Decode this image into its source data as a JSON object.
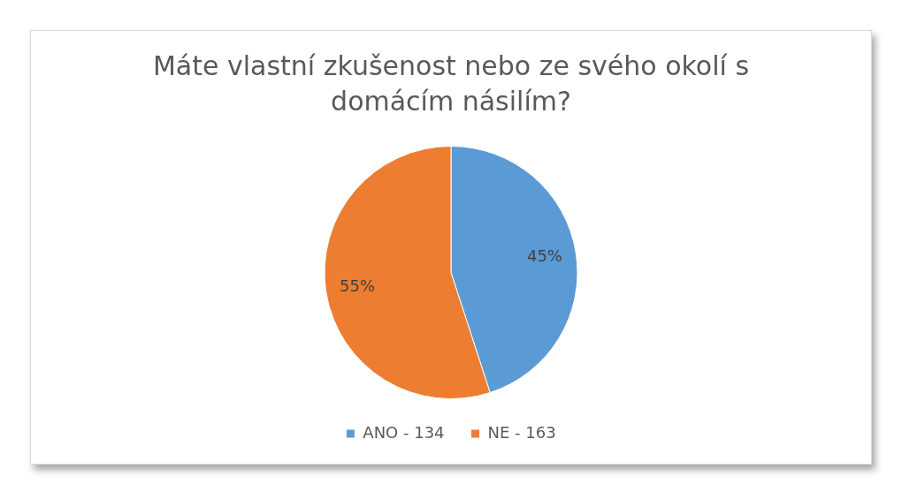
{
  "chart_data": {
    "type": "pie",
    "title": "Máte vlastní zkušenost nebo ze svého okolí s domácím násilím?",
    "categories": [
      "ANO - 134",
      "NE - 163"
    ],
    "values": [
      45,
      55
    ],
    "colors": [
      "#5b9bd5",
      "#ed7d31"
    ],
    "value_labels": [
      "45%",
      "55%"
    ],
    "legend": "bottom"
  }
}
